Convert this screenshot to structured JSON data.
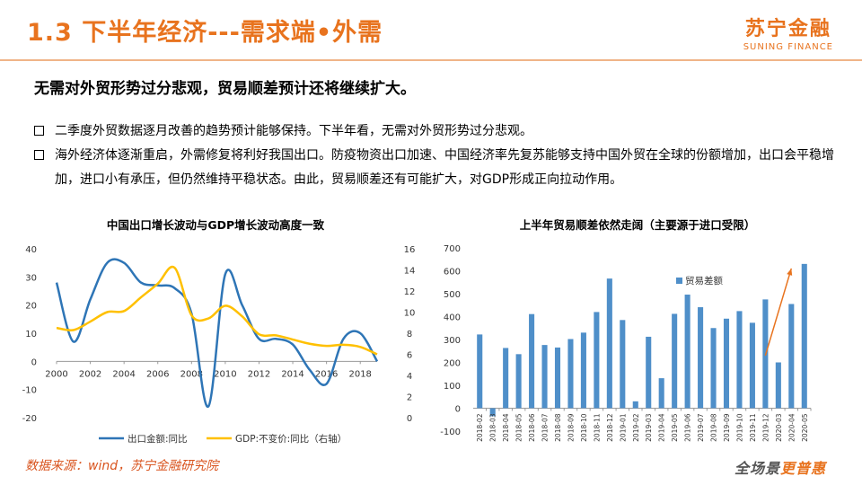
{
  "header": {
    "title": "1.3 下半年经济---需求端•外需",
    "logo_cn": "苏宁金融",
    "logo_en": "SUNING FINANCE"
  },
  "subtitle": "无需对外贸形势过分悲观，贸易顺差预计还将继续扩大。",
  "bullets": [
    "二季度外贸数据逐月改善的趋势预计能够保持。下半年看，无需对外贸形势过分悲观。",
    "海外经济体逐渐重启，外需修复将利好我国出口。防疫物资出口加速、中国经济率先复苏能够支持中国外贸在全球的份额增加，出口会平稳增加，进口小有承压，但仍然维持平稳状态。由此，贸易顺差还有可能扩大，对GDP形成正向拉动作用。"
  ],
  "footer": {
    "source": "数据来源：wind，苏宁金融研究院",
    "slogan_a": "全场景",
    "slogan_b": "更普惠"
  },
  "colors": {
    "accent": "#e8731e",
    "export_line": "#2e75b6",
    "gdp_line": "#ffc000",
    "bar": "#4f8fc9",
    "arrow": "#e8731e"
  },
  "chart_data": [
    {
      "type": "line",
      "title": "中国出口增长波动与GDP增长波动高度一致",
      "x_ticks": [
        "2000",
        "2002",
        "2004",
        "2006",
        "2008",
        "2010",
        "2012",
        "2014",
        "2016",
        "2018"
      ],
      "xlim": [
        2000,
        2019
      ],
      "ylim": [
        -20,
        40
      ],
      "y_ticks": [
        "-20",
        "-10",
        "0",
        "10",
        "20",
        "30",
        "40"
      ],
      "y2lim": [
        0,
        16
      ],
      "y2_ticks": [
        "0",
        "2",
        "4",
        "6",
        "8",
        "10",
        "12",
        "14",
        "16"
      ],
      "legend_position": "bottom",
      "series": [
        {
          "name": "出口金额:同比",
          "axis": "left",
          "x": [
            2000,
            2001,
            2002,
            2003,
            2004,
            2005,
            2006,
            2007,
            2008,
            2009,
            2010,
            2011,
            2012,
            2013,
            2014,
            2015,
            2016,
            2017,
            2018,
            2019
          ],
          "y": [
            28,
            7,
            22,
            35,
            35,
            28,
            27,
            26,
            17,
            -16,
            31,
            20,
            8,
            8,
            6,
            -3,
            -8,
            8,
            10,
            0
          ]
        },
        {
          "name": "GDP:不变价:同比（右轴）",
          "axis": "right",
          "x": [
            2000,
            2001,
            2002,
            2003,
            2004,
            2005,
            2006,
            2007,
            2008,
            2009,
            2010,
            2011,
            2012,
            2013,
            2014,
            2015,
            2016,
            2017,
            2018,
            2019
          ],
          "y": [
            8.5,
            8.3,
            9.1,
            10.0,
            10.1,
            11.4,
            12.7,
            14.2,
            9.7,
            9.4,
            10.6,
            9.6,
            7.9,
            7.8,
            7.4,
            7.0,
            6.8,
            6.9,
            6.7,
            6.0
          ]
        }
      ]
    },
    {
      "type": "bar",
      "title": "上半年贸易顺差依然走阔（主要源于进口受限）",
      "categories": [
        "2018-02",
        "2018-03",
        "2018-04",
        "2018-05",
        "2018-06",
        "2018-07",
        "2018-08",
        "2018-09",
        "2018-10",
        "2018-11",
        "2018-12",
        "2019-01",
        "2019-02",
        "2019-03",
        "2019-04",
        "2019-05",
        "2019-06",
        "2019-07",
        "2019-08",
        "2019-09",
        "2019-10",
        "2019-11",
        "2019-12",
        "2020-03",
        "2020-04",
        "2020-05"
      ],
      "series": [
        {
          "name": "贸易差额",
          "values": [
            322,
            -35,
            263,
            236,
            411,
            276,
            265,
            302,
            330,
            420,
            566,
            385,
            30,
            312,
            131,
            412,
            496,
            441,
            350,
            391,
            424,
            373,
            475,
            200,
            455,
            630
          ]
        }
      ],
      "ylim": [
        -100,
        700
      ],
      "y_ticks": [
        "-100",
        "0",
        "100",
        "200",
        "300",
        "400",
        "500",
        "600",
        "700"
      ],
      "legend_position": "top-left"
    }
  ]
}
